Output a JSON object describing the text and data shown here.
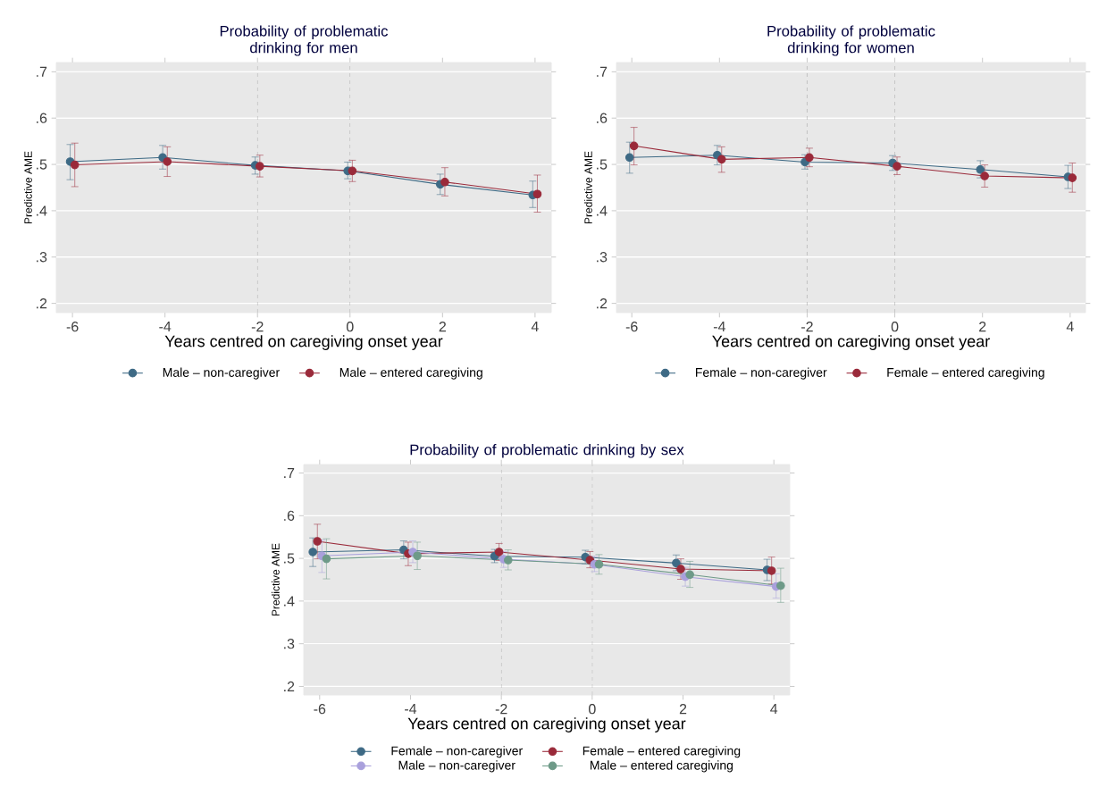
{
  "chart_data": [
    {
      "type": "line",
      "title": "Probability of problematic drinking for men",
      "xlabel": "Years centred on caregiving onset year",
      "ylabel": "Predictive AME",
      "xlim": [
        -6.35,
        4.35
      ],
      "ylim": [
        0.18,
        0.72
      ],
      "xticks": [
        -6,
        -4,
        -2,
        0,
        2,
        4
      ],
      "yticks": [
        {
          "value": 0.2,
          "label": ".2"
        },
        {
          "value": 0.3,
          "label": ".3"
        },
        {
          "value": 0.4,
          "label": ".4"
        },
        {
          "value": 0.5,
          "label": ".5"
        },
        {
          "value": 0.6,
          "label": ".6"
        },
        {
          "value": 0.7,
          "label": ".7"
        }
      ],
      "grid": "y",
      "legend": "bottom",
      "marker": "circle",
      "line_style": "solid",
      "ref_lines": [
        {
          "axis": "x",
          "value": -2,
          "color": "#a0a0a0",
          "line_style": "dashed"
        },
        {
          "axis": "x",
          "value": 0,
          "color": "#a0a0a0",
          "line_style": "dashed"
        }
      ],
      "series": [
        {
          "name": "Male – non-caregiver",
          "color": "#3e6a85",
          "x": [
            -6.05,
            -4.05,
            -2.05,
            -0.05,
            1.95,
            3.95
          ],
          "values": [
            0.506,
            0.515,
            0.498,
            0.486,
            0.457,
            0.434
          ],
          "errors": [
            [
              0.467,
              0.543
            ],
            [
              0.49,
              0.541
            ],
            [
              0.479,
              0.516
            ],
            [
              0.469,
              0.505
            ],
            [
              0.435,
              0.479
            ],
            [
              0.407,
              0.464
            ]
          ]
        },
        {
          "name": "Male – entered caregiving",
          "color": "#9a2a3a",
          "x": [
            -5.95,
            -3.95,
            -1.95,
            0.05,
            2.05,
            4.05
          ],
          "values": [
            0.499,
            0.506,
            0.496,
            0.486,
            0.462,
            0.436
          ],
          "errors": [
            [
              0.452,
              0.546
            ],
            [
              0.474,
              0.538
            ],
            [
              0.473,
              0.52
            ],
            [
              0.463,
              0.509
            ],
            [
              0.432,
              0.493
            ],
            [
              0.397,
              0.477
            ]
          ]
        }
      ]
    },
    {
      "type": "line",
      "title": "Probability of problematic drinking for women",
      "xlabel": "Years centred on caregiving onset year",
      "ylabel": "Predictive AME",
      "xlim": [
        -6.35,
        4.35
      ],
      "ylim": [
        0.18,
        0.72
      ],
      "xticks": [
        -6,
        -4,
        -2,
        0,
        2,
        4
      ],
      "yticks": [
        {
          "value": 0.2,
          "label": ".2"
        },
        {
          "value": 0.3,
          "label": ".3"
        },
        {
          "value": 0.4,
          "label": ".4"
        },
        {
          "value": 0.5,
          "label": ".5"
        },
        {
          "value": 0.6,
          "label": ".6"
        },
        {
          "value": 0.7,
          "label": ".7"
        }
      ],
      "grid": "y",
      "legend": "bottom",
      "marker": "circle",
      "line_style": "solid",
      "ref_lines": [
        {
          "axis": "x",
          "value": -2,
          "color": "#a0a0a0",
          "line_style": "dashed"
        },
        {
          "axis": "x",
          "value": 0,
          "color": "#a0a0a0",
          "line_style": "dashed"
        }
      ],
      "series": [
        {
          "name": "Female – non-caregiver",
          "color": "#3e6a85",
          "x": [
            -6.05,
            -4.05,
            -2.05,
            -0.05,
            1.95,
            3.95
          ],
          "values": [
            0.515,
            0.52,
            0.505,
            0.503,
            0.489,
            0.473
          ],
          "errors": [
            [
              0.481,
              0.548
            ],
            [
              0.499,
              0.541
            ],
            [
              0.49,
              0.521
            ],
            [
              0.487,
              0.519
            ],
            [
              0.471,
              0.508
            ],
            [
              0.448,
              0.498
            ]
          ]
        },
        {
          "name": "Female – entered caregiving",
          "color": "#9a2a3a",
          "x": [
            -5.95,
            -3.95,
            -1.95,
            0.05,
            2.05,
            4.05
          ],
          "values": [
            0.54,
            0.511,
            0.515,
            0.496,
            0.475,
            0.471
          ],
          "errors": [
            [
              0.499,
              0.58
            ],
            [
              0.483,
              0.538
            ],
            [
              0.495,
              0.535
            ],
            [
              0.478,
              0.516
            ],
            [
              0.451,
              0.499
            ],
            [
              0.44,
              0.503
            ]
          ]
        }
      ]
    },
    {
      "type": "line",
      "title": "Probability of problematic drinking by sex",
      "xlabel": "Years centred on caregiving onset year",
      "ylabel": "Predictive AME",
      "xlim": [
        -6.35,
        4.35
      ],
      "ylim": [
        0.18,
        0.72
      ],
      "xticks": [
        -6,
        -4,
        -2,
        0,
        2,
        4
      ],
      "yticks": [
        {
          "value": 0.2,
          "label": ".2"
        },
        {
          "value": 0.3,
          "label": ".3"
        },
        {
          "value": 0.4,
          "label": ".4"
        },
        {
          "value": 0.5,
          "label": ".5"
        },
        {
          "value": 0.6,
          "label": ".6"
        },
        {
          "value": 0.7,
          "label": ".7"
        }
      ],
      "grid": "y",
      "legend": "bottom",
      "marker": "circle",
      "line_style": "solid",
      "ref_lines": [
        {
          "axis": "x",
          "value": -2,
          "color": "#a0a0a0",
          "line_style": "dashed"
        },
        {
          "axis": "x",
          "value": 0,
          "color": "#a0a0a0",
          "line_style": "dashed"
        }
      ],
      "series": [
        {
          "name": "Female – non-caregiver",
          "color": "#3e6a85",
          "x": [
            -6.15,
            -4.15,
            -2.15,
            -0.15,
            1.85,
            3.85
          ],
          "values": [
            0.515,
            0.52,
            0.505,
            0.503,
            0.489,
            0.473
          ],
          "errors": [
            [
              0.481,
              0.548
            ],
            [
              0.499,
              0.541
            ],
            [
              0.49,
              0.521
            ],
            [
              0.487,
              0.519
            ],
            [
              0.471,
              0.508
            ],
            [
              0.448,
              0.498
            ]
          ]
        },
        {
          "name": "Female – entered caregiving",
          "color": "#9a2a3a",
          "x": [
            -6.05,
            -4.05,
            -2.05,
            -0.05,
            1.95,
            3.95
          ],
          "values": [
            0.54,
            0.511,
            0.515,
            0.496,
            0.475,
            0.471
          ],
          "errors": [
            [
              0.499,
              0.58
            ],
            [
              0.483,
              0.538
            ],
            [
              0.495,
              0.535
            ],
            [
              0.478,
              0.516
            ],
            [
              0.451,
              0.499
            ],
            [
              0.44,
              0.503
            ]
          ]
        },
        {
          "name": "Male – non-caregiver",
          "color": "#a9a0dc",
          "x": [
            -5.95,
            -3.95,
            -1.95,
            0.05,
            2.05,
            4.05
          ],
          "values": [
            0.506,
            0.515,
            0.498,
            0.486,
            0.457,
            0.434
          ],
          "errors": [
            [
              0.467,
              0.543
            ],
            [
              0.49,
              0.541
            ],
            [
              0.479,
              0.516
            ],
            [
              0.469,
              0.505
            ],
            [
              0.435,
              0.479
            ],
            [
              0.407,
              0.464
            ]
          ]
        },
        {
          "name": "Male – entered caregiving",
          "color": "#6e9a88",
          "x": [
            -5.85,
            -3.85,
            -1.85,
            0.15,
            2.15,
            4.15
          ],
          "values": [
            0.499,
            0.506,
            0.496,
            0.486,
            0.462,
            0.436
          ],
          "errors": [
            [
              0.452,
              0.546
            ],
            [
              0.474,
              0.538
            ],
            [
              0.473,
              0.52
            ],
            [
              0.463,
              0.509
            ],
            [
              0.432,
              0.493
            ],
            [
              0.397,
              0.477
            ]
          ]
        }
      ]
    }
  ]
}
